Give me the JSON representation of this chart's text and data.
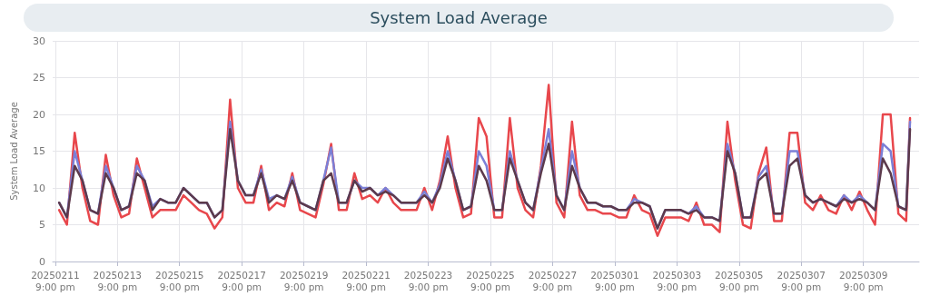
{
  "chart_data": {
    "type": "line",
    "title": "System Load Average",
    "ylabel": "System Load Average",
    "x": [
      "2025-02-12T00:00",
      "2025-02-12T06:00",
      "2025-02-12T12:00",
      "2025-02-12T18:00",
      "2025-02-13T00:00",
      "2025-02-13T06:00",
      "2025-02-13T12:00",
      "2025-02-13T18:00",
      "2025-02-14T00:00",
      "2025-02-14T06:00",
      "2025-02-14T12:00",
      "2025-02-14T18:00",
      "2025-02-15T00:00",
      "2025-02-15T06:00",
      "2025-02-15T12:00",
      "2025-02-15T18:00",
      "2025-02-16T00:00",
      "2025-02-16T06:00",
      "2025-02-16T12:00",
      "2025-02-16T18:00",
      "2025-02-17T00:00",
      "2025-02-17T06:00",
      "2025-02-17T12:00",
      "2025-02-17T18:00",
      "2025-02-18T00:00",
      "2025-02-18T06:00",
      "2025-02-18T12:00",
      "2025-02-18T18:00",
      "2025-02-19T00:00",
      "2025-02-19T06:00",
      "2025-02-19T12:00",
      "2025-02-19T18:00",
      "2025-02-20T00:00",
      "2025-02-20T06:00",
      "2025-02-20T12:00",
      "2025-02-20T18:00",
      "2025-02-21T00:00",
      "2025-02-21T06:00",
      "2025-02-21T12:00",
      "2025-02-21T18:00",
      "2025-02-22T00:00",
      "2025-02-22T06:00",
      "2025-02-22T12:00",
      "2025-02-22T18:00",
      "2025-02-23T00:00",
      "2025-02-23T06:00",
      "2025-02-23T12:00",
      "2025-02-23T18:00",
      "2025-02-24T00:00",
      "2025-02-24T06:00",
      "2025-02-24T12:00",
      "2025-02-24T18:00",
      "2025-02-25T00:00",
      "2025-02-25T06:00",
      "2025-02-25T12:00",
      "2025-02-25T18:00",
      "2025-02-26T00:00",
      "2025-02-26T06:00",
      "2025-02-26T12:00",
      "2025-02-26T18:00",
      "2025-02-27T00:00",
      "2025-02-27T06:00",
      "2025-02-27T12:00",
      "2025-02-27T18:00",
      "2025-02-28T00:00",
      "2025-02-28T06:00",
      "2025-02-28T12:00",
      "2025-02-28T18:00",
      "2025-03-01T00:00",
      "2025-03-01T06:00",
      "2025-03-01T12:00",
      "2025-03-01T18:00",
      "2025-03-02T00:00",
      "2025-03-02T06:00",
      "2025-03-02T12:00",
      "2025-03-02T18:00",
      "2025-03-03T00:00",
      "2025-03-03T06:00",
      "2025-03-03T12:00",
      "2025-03-03T18:00",
      "2025-03-04T00:00",
      "2025-03-04T06:00",
      "2025-03-04T12:00",
      "2025-03-04T18:00",
      "2025-03-05T00:00",
      "2025-03-05T06:00",
      "2025-03-05T12:00",
      "2025-03-05T18:00",
      "2025-03-06T00:00",
      "2025-03-06T06:00",
      "2025-03-06T12:00",
      "2025-03-06T18:00",
      "2025-03-07T00:00",
      "2025-03-07T06:00",
      "2025-03-07T12:00",
      "2025-03-07T18:00",
      "2025-03-08T00:00",
      "2025-03-08T06:00",
      "2025-03-08T12:00",
      "2025-03-08T18:00",
      "2025-03-09T00:00",
      "2025-03-09T06:00",
      "2025-03-09T12:00",
      "2025-03-09T18:00",
      "2025-03-10T00:00",
      "2025-03-10T06:00",
      "2025-03-10T12:00",
      "2025-03-10T18:00",
      "2025-03-11T00:00",
      "2025-03-11T06:00",
      "2025-03-11T09:00"
    ],
    "series": [
      {
        "color": "#e8474c",
        "values": [
          7,
          5,
          17.5,
          10,
          5.5,
          5,
          14.5,
          9,
          6,
          6.5,
          14,
          10,
          6,
          7,
          7,
          7,
          9,
          8,
          7,
          6.5,
          4.5,
          6,
          22,
          10,
          8,
          8,
          13,
          7,
          8,
          7.5,
          12,
          7,
          6.5,
          6,
          10.5,
          16,
          7,
          7,
          12,
          8.5,
          9,
          8,
          10,
          8,
          7,
          7,
          7,
          10,
          7,
          11,
          17,
          10,
          6,
          6.5,
          19.5,
          17,
          6,
          6,
          19.5,
          10,
          7,
          6,
          13,
          24,
          8,
          6,
          19,
          9,
          7,
          7,
          6.5,
          6.5,
          6,
          6,
          9,
          7,
          6.5,
          3.5,
          6,
          6,
          6,
          5.5,
          8,
          5,
          5,
          4,
          19,
          11,
          5,
          4.5,
          12,
          15.5,
          5.5,
          5.5,
          17.5,
          17.5,
          8,
          7,
          9,
          7,
          6.5,
          9,
          7,
          9.5,
          7,
          5,
          20,
          20,
          6.5,
          5.5,
          19.5
        ]
      },
      {
        "color": "#7b7fd6",
        "values": [
          8,
          6,
          15,
          11,
          7,
          6.5,
          13,
          10,
          7,
          7.5,
          13,
          11,
          7.5,
          8.5,
          8,
          8,
          10,
          9,
          8,
          8,
          6,
          7,
          19,
          11,
          9,
          9,
          12.5,
          8.5,
          9,
          8.5,
          11.5,
          8,
          7.5,
          7,
          11,
          15.5,
          8,
          8,
          11,
          10,
          10,
          9,
          10,
          9,
          8,
          8,
          8,
          9.5,
          8,
          10.5,
          15,
          11,
          7,
          7.5,
          15,
          13,
          7,
          7,
          15,
          11,
          8,
          7,
          12.5,
          18,
          9,
          7,
          15,
          10,
          8,
          8,
          7.5,
          7.5,
          7,
          7,
          8.5,
          8,
          7.5,
          4.5,
          7,
          7,
          7,
          6.5,
          7.5,
          6,
          6,
          5.5,
          16,
          12,
          6,
          6,
          11.5,
          13,
          6.5,
          6.5,
          15,
          15,
          9,
          8,
          8.5,
          8,
          7.5,
          9,
          8,
          9,
          8,
          7,
          16,
          15,
          7.5,
          7,
          19
        ]
      },
      {
        "color": "#5c3a4c",
        "values": [
          8,
          6,
          13,
          11,
          7,
          6.5,
          12,
          10,
          7,
          7.5,
          12,
          11,
          7,
          8.5,
          8,
          8,
          10,
          9,
          8,
          8,
          6,
          7,
          18,
          11,
          9,
          9,
          12,
          8,
          9,
          8.5,
          11,
          8,
          7.5,
          7,
          11,
          12,
          8,
          8,
          11,
          9.5,
          10,
          9,
          9.5,
          9,
          8,
          8,
          8,
          9,
          8,
          10,
          14,
          11,
          7,
          7.5,
          13,
          11,
          7,
          7,
          14,
          11,
          8,
          7,
          12,
          16,
          9,
          7,
          13,
          10,
          8,
          8,
          7.5,
          7.5,
          7,
          7,
          8,
          8,
          7.5,
          4.5,
          7,
          7,
          7,
          6.5,
          7,
          6,
          6,
          5.5,
          15,
          12,
          6,
          6,
          11,
          12,
          6.5,
          6.5,
          13,
          14,
          9,
          8,
          8.5,
          8,
          7.5,
          8.5,
          8,
          8.5,
          8,
          7,
          14,
          12,
          7.5,
          7,
          18
        ]
      }
    ],
    "xlim": [
      "2025-02-11T19:00",
      "2025-03-11T16:00"
    ],
    "xticks": [
      {
        "value": "2025-02-11T21:00",
        "label": "20250211\n9:00 pm"
      },
      {
        "value": "2025-02-13T21:00",
        "label": "20250213\n9:00 pm"
      },
      {
        "value": "2025-02-15T21:00",
        "label": "20250215\n9:00 pm"
      },
      {
        "value": "2025-02-17T21:00",
        "label": "20250217\n9:00 pm"
      },
      {
        "value": "2025-02-19T21:00",
        "label": "20250219\n9:00 pm"
      },
      {
        "value": "2025-02-21T21:00",
        "label": "20250221\n9:00 pm"
      },
      {
        "value": "2025-02-23T21:00",
        "label": "20250223\n9:00 pm"
      },
      {
        "value": "2025-02-25T21:00",
        "label": "20250225\n9:00 pm"
      },
      {
        "value": "2025-02-27T21:00",
        "label": "20250227\n9:00 pm"
      },
      {
        "value": "2025-03-01T21:00",
        "label": "20250301\n9:00 pm"
      },
      {
        "value": "2025-03-03T21:00",
        "label": "20250303\n9:00 pm"
      },
      {
        "value": "2025-03-05T21:00",
        "label": "20250305\n9:00 pm"
      },
      {
        "value": "2025-03-07T21:00",
        "label": "20250307\n9:00 pm"
      },
      {
        "value": "2025-03-09T21:00",
        "label": "20250309\n9:00 pm"
      }
    ],
    "ylim": [
      0,
      30
    ],
    "yticks": [
      0,
      5,
      10,
      15,
      20,
      25,
      30
    ],
    "grid": true,
    "marker": "none",
    "line_style": "solid"
  }
}
